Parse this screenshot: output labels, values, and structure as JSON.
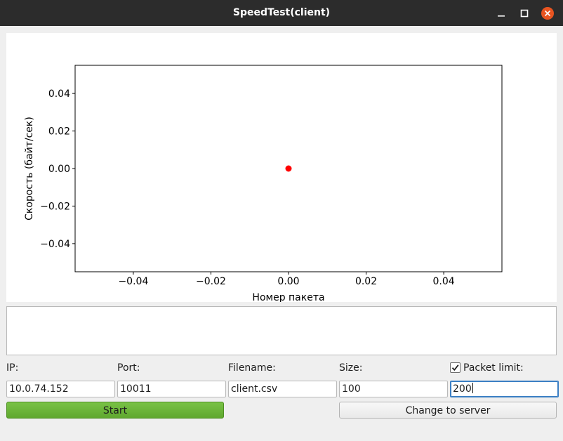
{
  "window": {
    "title": "SpeedTest(client)"
  },
  "chart_data": {
    "type": "scatter",
    "x": [
      0.0
    ],
    "y": [
      0.0
    ],
    "xlabel": "Номер пакета",
    "ylabel": "Скорость (байт/сек)",
    "xlim": [
      -0.055,
      0.055
    ],
    "ylim": [
      -0.055,
      0.055
    ],
    "xticks": [
      -0.04,
      -0.02,
      0.0,
      0.02,
      0.04
    ],
    "xtick_labels": [
      "−0.04",
      "−0.02",
      "0.00",
      "0.02",
      "0.04"
    ],
    "yticks": [
      0.04,
      0.02,
      0.0,
      -0.02,
      -0.04
    ],
    "ytick_labels": [
      "0.04",
      "0.02",
      "0.00",
      "−0.02",
      "−0.04"
    ],
    "point_color": "#ff0000",
    "grid": false
  },
  "log": {
    "text": ""
  },
  "form": {
    "ip": {
      "label": "IP:",
      "value": "10.0.74.152"
    },
    "port": {
      "label": "Port:",
      "value": "10011"
    },
    "filename": {
      "label": "Filename:",
      "value": "client.csv"
    },
    "size": {
      "label": "Size:",
      "value": "100"
    },
    "packet_limit": {
      "label": "Packet limit:",
      "value": "200",
      "checked": true
    }
  },
  "buttons": {
    "start": "Start",
    "change": "Change to server"
  },
  "colors": {
    "titlebar": "#2c2c2c",
    "close_button": "#e95420",
    "start_button": "#6ab43a"
  }
}
